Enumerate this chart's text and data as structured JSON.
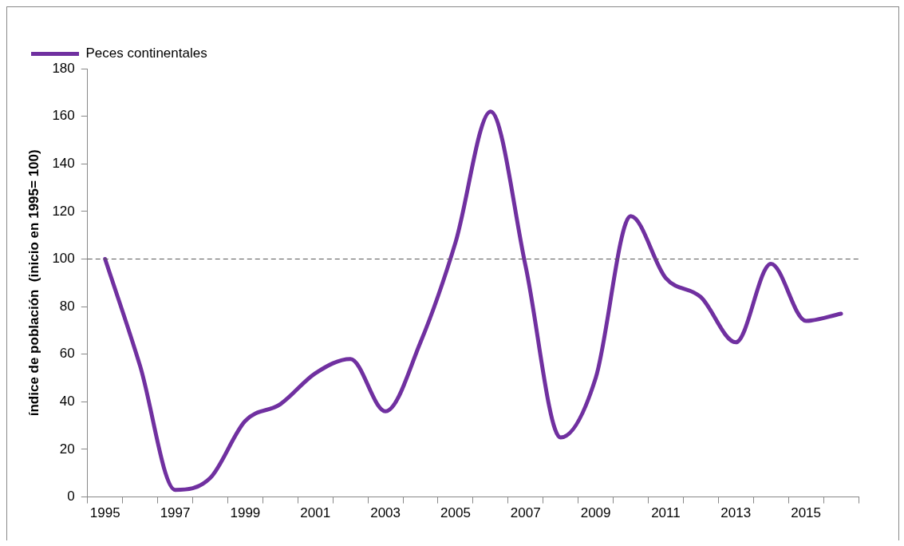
{
  "chart_data": {
    "type": "line",
    "ylabel": "índice de población  (inicio en 1995= 100)",
    "categories": [
      "1995",
      null,
      "1997",
      null,
      "1999",
      null,
      "2001",
      null,
      "2003",
      null,
      "2005",
      null,
      "2007",
      null,
      "2009",
      null,
      "2011",
      null,
      "2013",
      null,
      "2015",
      null
    ],
    "series": [
      {
        "name": "Peces continentales",
        "color": "#7030a0",
        "values": [
          100,
          55,
          3,
          8,
          32,
          39,
          52,
          58,
          36,
          65,
          107,
          162,
          97,
          25,
          50,
          118,
          92,
          84,
          65,
          98,
          74,
          77
        ]
      }
    ],
    "ylim": [
      0,
      180
    ],
    "yticks": [
      0,
      20,
      40,
      60,
      80,
      100,
      120,
      140,
      160,
      180
    ],
    "ref_lines": [
      {
        "axis": "y",
        "value": 100,
        "color": "#595959",
        "line_style": "dashed"
      }
    ],
    "grid": false,
    "legend": "top left",
    "marker": "none",
    "line_style": "solid"
  }
}
